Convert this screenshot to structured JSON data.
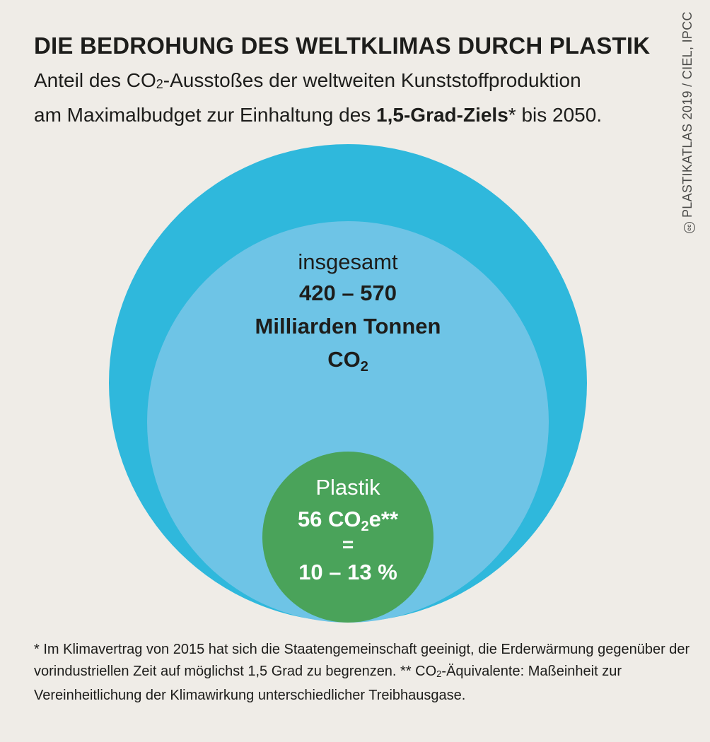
{
  "header": {
    "title": "DIE BEDROHUNG DES WELTKLIMAS DURCH PLASTIK",
    "subtitle_line1_a": "Anteil des CO",
    "subtitle_line1_sub": "2",
    "subtitle_line1_b": "-Ausstoßes der weltweiten Kunststoffproduktion",
    "subtitle_line2_a": "am Maximalbudget zur Einhaltung des ",
    "subtitle_line2_bold": "1,5-Grad-Ziels",
    "subtitle_line2_b": "* bis 2050."
  },
  "source": {
    "cc_symbol": "cc",
    "text": "PLASTIKATLAS 2019 / CIEL, IPCC"
  },
  "chart_data": {
    "type": "nested-circles",
    "unit": "Milliarden Tonnen",
    "total": {
      "label": "insgesamt",
      "range_text": "420 – 570",
      "unit_text": "Milliarden Tonnen",
      "gas_text": "CO",
      "gas_sub": "2",
      "min": 420,
      "max": 570
    },
    "plastic": {
      "label": "Plastik",
      "value_num": "56 CO",
      "value_sub": "2",
      "value_suffix": "e**",
      "equals": "=",
      "share_text": "10 – 13 %",
      "value": 56,
      "share_min": 10,
      "share_max": 13
    },
    "colors": {
      "outer": "#2fb8dc",
      "middle": "#6ec4e6",
      "plastic": "#4aa35a",
      "background": "#efece7"
    }
  },
  "footnote": {
    "part1": "* Im Klimavertrag von 2015 hat sich die Staatengemeinschaft geeinigt, die Erderwärmung gegenüber der vorindustriellen Zeit auf möglichst 1,5 Grad zu begrenzen. ** CO",
    "sub": "2",
    "part2": "-Äquivalente: Maßeinheit zur Vereinheitlichung der Klimawirkung unterschiedlicher Treibhausgase."
  }
}
